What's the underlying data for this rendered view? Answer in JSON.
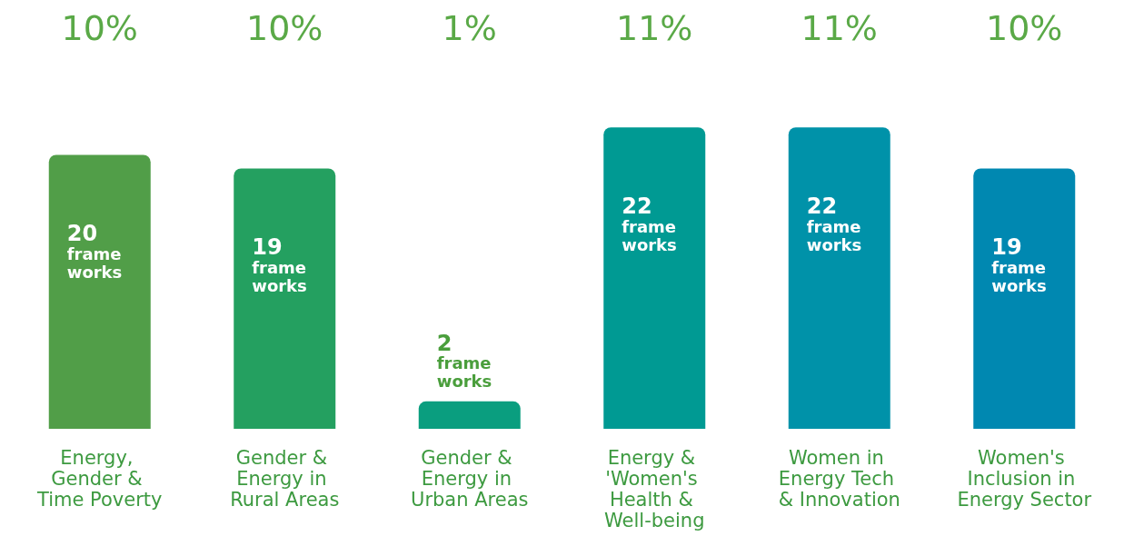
{
  "chart_data": {
    "type": "bar",
    "categories": [
      "Energy, Gender & Time Poverty",
      "Gender & Energy in Rural Areas",
      "Gender & Energy in Urban Areas",
      "Energy & 'Women's Health & Well-being",
      "Women in Energy Tech & Innovation",
      "Women's Inclusion in Energy Sector"
    ],
    "values": [
      20,
      19,
      2,
      22,
      22,
      19
    ],
    "colors": [
      "#519e48",
      "#24a060",
      "#0a9e7f",
      "#009a93",
      "#0092a9",
      "#0088b1"
    ],
    "value_labels": [
      "20 frame works",
      "19 frame works",
      "2 frame works",
      "22 frame works",
      "22 frame works",
      "19 frame works"
    ],
    "annotations": [
      "10%",
      "10%",
      "1%",
      "11%",
      "11%",
      "10%"
    ],
    "grid": false
  }
}
